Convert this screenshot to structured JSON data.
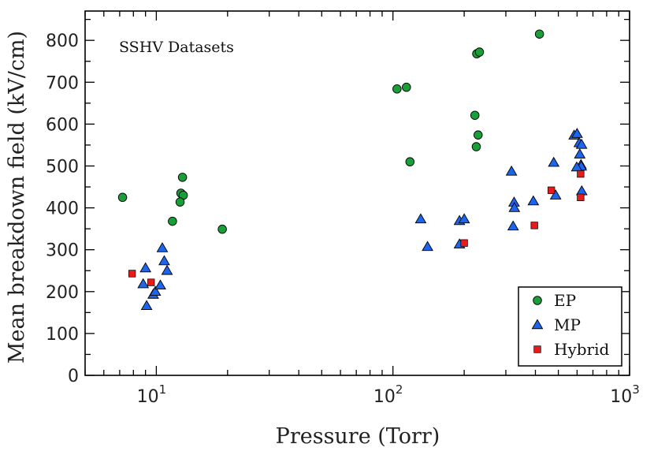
{
  "chart_data": {
    "type": "scatter",
    "title": "",
    "annotation": "SSHV Datasets",
    "xlabel": "Pressure (Torr)",
    "ylabel": "Mean breakdown field (kV/cm)",
    "xscale": "log",
    "xlim": [
      5,
      1000
    ],
    "ylim": [
      0,
      870
    ],
    "x_ticks": [
      {
        "base": "10",
        "exp": "1"
      },
      {
        "base": "10",
        "exp": "2"
      },
      {
        "base": "10",
        "exp": "3"
      }
    ],
    "y_ticks": [
      "0",
      "100",
      "200",
      "300",
      "400",
      "500",
      "600",
      "700",
      "800"
    ],
    "legend_position": "bottom-right",
    "grid": false,
    "series": [
      {
        "name": "EP",
        "marker": "circle",
        "color": "#1a9e3a",
        "points": [
          [
            7.2,
            425
          ],
          [
            12.9,
            473
          ],
          [
            12.7,
            435
          ],
          [
            13.0,
            430
          ],
          [
            12.6,
            414
          ],
          [
            11.7,
            368
          ],
          [
            19.0,
            349
          ],
          [
            104,
            684
          ],
          [
            114,
            688
          ],
          [
            118,
            510
          ],
          [
            416,
            815
          ],
          [
            226,
            768
          ],
          [
            232,
            772
          ],
          [
            222,
            621
          ],
          [
            229,
            574
          ],
          [
            225,
            546
          ]
        ]
      },
      {
        "name": "MP",
        "marker": "triangle",
        "color": "#1c66ee",
        "points": [
          [
            9.0,
            256
          ],
          [
            8.8,
            218
          ],
          [
            9.1,
            166
          ],
          [
            9.7,
            193
          ],
          [
            9.9,
            200
          ],
          [
            10.4,
            215
          ],
          [
            10.6,
            304
          ],
          [
            10.8,
            273
          ],
          [
            11.1,
            250
          ],
          [
            131,
            373
          ],
          [
            140,
            307
          ],
          [
            191,
            369
          ],
          [
            191,
            313
          ],
          [
            200,
            373
          ],
          [
            317,
            487
          ],
          [
            325,
            413
          ],
          [
            326,
            400
          ],
          [
            322,
            356
          ],
          [
            392,
            416
          ],
          [
            478,
            508
          ],
          [
            487,
            430
          ],
          [
            583,
            573
          ],
          [
            600,
            577
          ],
          [
            613,
            555
          ],
          [
            616,
            528
          ],
          [
            623,
            503
          ],
          [
            625,
            499
          ],
          [
            627,
            551
          ],
          [
            628,
            440
          ],
          [
            598,
            497
          ]
        ]
      },
      {
        "name": "Hybrid",
        "marker": "square",
        "color": "#e81b1b",
        "points": [
          [
            7.9,
            243
          ],
          [
            9.5,
            222
          ],
          [
            200,
            316
          ],
          [
            396,
            358
          ],
          [
            467,
            442
          ],
          [
            621,
            481
          ],
          [
            621,
            425
          ]
        ]
      }
    ]
  }
}
